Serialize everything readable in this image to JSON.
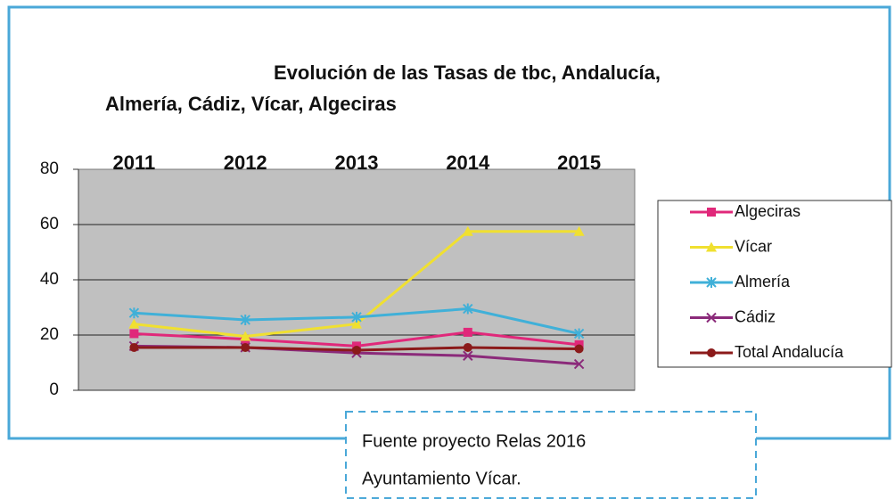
{
  "chart_data": {
    "type": "line",
    "title": [
      "Evolución de las Tasas de tbc, Andalucía,",
      "Almería, Cádiz, Vícar, Algeciras"
    ],
    "categories": [
      "2011",
      "2012",
      "2013",
      "2014",
      "2015"
    ],
    "series": [
      {
        "name": "Algeciras",
        "color": "#e0287a",
        "marker": "square",
        "values": [
          20.5,
          18.5,
          16,
          21,
          16.5
        ]
      },
      {
        "name": "Vícar",
        "color": "#f0e030",
        "marker": "triangle",
        "values": [
          24,
          19.5,
          24,
          57.5,
          57.5
        ]
      },
      {
        "name": "Almería",
        "color": "#40b0d8",
        "marker": "star",
        "values": [
          28,
          25.5,
          26.5,
          29.5,
          20.5
        ]
      },
      {
        "name": "Cádiz",
        "color": "#8b2a7a",
        "marker": "x",
        "values": [
          16,
          15.5,
          13.5,
          12.5,
          9.5
        ]
      },
      {
        "name": "Total Andalucía",
        "color": "#8b1a1a",
        "marker": "circle",
        "values": [
          15.5,
          15.5,
          14.5,
          15.5,
          15
        ]
      }
    ],
    "ylim": [
      0,
      80
    ],
    "yticks": [
      0,
      20,
      40,
      60,
      80
    ],
    "grid": true,
    "legend": "right",
    "source": [
      "Fuente proyecto Relas 2016",
      "Ayuntamiento Vícar."
    ]
  }
}
